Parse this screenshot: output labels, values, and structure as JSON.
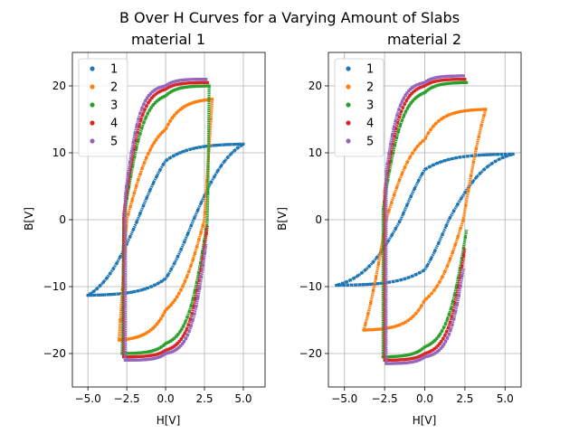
{
  "figure": {
    "suptitle": "B Over H Curves for a Varying Amount of Slabs"
  },
  "chart_data": [
    {
      "type": "scatter",
      "title": "material 1",
      "xlabel": "H[V]",
      "ylabel": "B[V]",
      "xlim": [
        -6.0,
        6.4
      ],
      "ylim": [
        -25.0,
        25.0
      ],
      "xticks": [
        -5.0,
        -2.5,
        0.0,
        2.5,
        5.0
      ],
      "xtick_labels": [
        "−5.0",
        "−2.5",
        "0.0",
        "2.5",
        "5.0"
      ],
      "yticks": [
        -20,
        -10,
        0,
        10,
        20
      ],
      "ytick_labels": [
        "−20",
        "−10",
        "0",
        "10",
        "20"
      ],
      "grid": true,
      "legend": "upper-left",
      "series": [
        {
          "name": "1",
          "color": "#1f77b4",
          "Hmax": 5.0,
          "Bmax": 11.3,
          "Br": 8.8,
          "Hc": 1.8,
          "k": 2.5
        },
        {
          "name": "2",
          "color": "#ff7f0e",
          "Hmax": 3.0,
          "Bmax": 18.0,
          "Br": 13.5,
          "Hc": 2.5,
          "k": 1.8
        },
        {
          "name": "3",
          "color": "#2ca02c",
          "Hmax": 2.8,
          "Bmax": 20.0,
          "Br": 18.5,
          "Hc": 2.7,
          "k": 1.3
        },
        {
          "name": "4",
          "color": "#d62728",
          "Hmax": 2.7,
          "Bmax": 20.5,
          "Br": 19.5,
          "Hc": 2.75,
          "k": 1.2
        },
        {
          "name": "5",
          "color": "#9467bd",
          "Hmax": 2.6,
          "Bmax": 21.0,
          "Br": 20.0,
          "Hc": 2.8,
          "k": 1.1
        }
      ]
    },
    {
      "type": "scatter",
      "title": "material 2",
      "xlabel": "H[V]",
      "ylabel": "B[V]",
      "xlim": [
        -6.0,
        6.0
      ],
      "ylim": [
        -25.0,
        25.0
      ],
      "xticks": [
        -5.0,
        -2.5,
        0.0,
        2.5,
        5.0
      ],
      "xtick_labels": [
        "−5.0",
        "−2.5",
        "0.0",
        "2.5",
        "5.0"
      ],
      "yticks": [
        -20,
        -10,
        0,
        10,
        20
      ],
      "ytick_labels": [
        "−20",
        "−10",
        "0",
        "10",
        "20"
      ],
      "grid": true,
      "legend": "upper-left",
      "series": [
        {
          "name": "1",
          "color": "#1f77b4",
          "Hmax": 5.5,
          "Bmax": 9.8,
          "Br": 7.5,
          "Hc": 1.5,
          "k": 2.5
        },
        {
          "name": "2",
          "color": "#ff7f0e",
          "Hmax": 3.8,
          "Bmax": 16.5,
          "Br": 12.0,
          "Hc": 2.4,
          "k": 1.8
        },
        {
          "name": "3",
          "color": "#2ca02c",
          "Hmax": 2.6,
          "Bmax": 20.5,
          "Br": 19.0,
          "Hc": 2.7,
          "k": 1.3
        },
        {
          "name": "4",
          "color": "#d62728",
          "Hmax": 2.5,
          "Bmax": 21.0,
          "Br": 20.0,
          "Hc": 2.75,
          "k": 1.2
        },
        {
          "name": "5",
          "color": "#9467bd",
          "Hmax": 2.4,
          "Bmax": 21.5,
          "Br": 20.5,
          "Hc": 2.8,
          "k": 1.1
        }
      ]
    }
  ]
}
